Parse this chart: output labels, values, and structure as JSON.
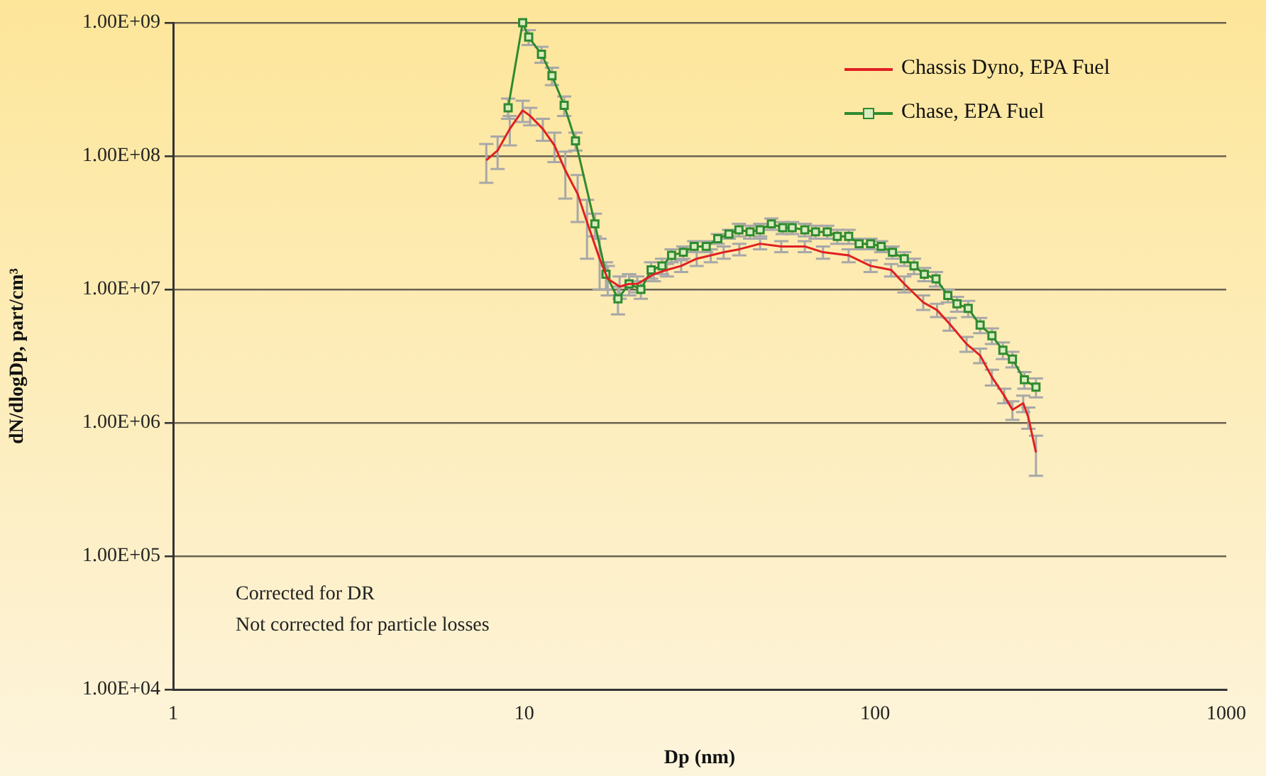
{
  "chart_data": {
    "type": "line",
    "xlabel": "Dp (nm)",
    "ylabel": "dN/dlogDp, part/cm³",
    "log": "xy",
    "grid": "y",
    "legend": "top right",
    "line_style": "solid",
    "xlim": [
      1,
      1000
    ],
    "xticks": [
      1,
      10,
      100,
      1000
    ],
    "ylim": [
      10000,
      1000000000
    ],
    "yticks": [
      {
        "value": 10000,
        "label": "1.00E+04"
      },
      {
        "value": 100000,
        "label": "1.00E+05"
      },
      {
        "value": 1000000,
        "label": "1.00E+06"
      },
      {
        "value": 10000000,
        "label": "1.00E+07"
      },
      {
        "value": 100000000,
        "label": "1.00E+08"
      },
      {
        "value": 1000000000,
        "label": "1.00E+09"
      }
    ],
    "annotations": [
      "Corrected for DR",
      "Not corrected for particle losses"
    ],
    "series": [
      {
        "name": "Chassis Dyno, EPA Fuel",
        "color": "#e02020",
        "x": [
          7.8,
          8.4,
          9.1,
          9.9,
          10.4,
          11.3,
          12.2,
          13.1,
          14.2,
          15.1,
          16.4,
          17.3,
          18.7,
          19.9,
          21,
          23.4,
          25.5,
          28,
          31,
          34,
          37,
          41,
          47,
          54,
          63,
          71,
          84,
          97,
          111,
          121,
          137,
          150,
          163,
          182,
          199,
          215,
          233,
          246,
          264,
          273,
          287
        ],
        "values": [
          93000000,
          110000000,
          160000000,
          220000000,
          200000000,
          160000000,
          120000000,
          78000000,
          52000000,
          32000000,
          17000000,
          12000000,
          10500000,
          11000000,
          11000000,
          13000000,
          14000000,
          15000000,
          17000000,
          18000000,
          19000000,
          20000000,
          22000000,
          21000000,
          21000000,
          19000000,
          18000000,
          15000000,
          14000000,
          11000000,
          8000000,
          7000000,
          5500000,
          3900000,
          3200000,
          2200000,
          1600000,
          1250000,
          1400000,
          1100000,
          600000
        ],
        "errors": [
          30000000,
          30000000,
          40000000,
          40000000,
          30000000,
          30000000,
          30000000,
          30000000,
          20000000,
          15000000,
          7000000,
          3000000,
          2000000,
          2000000,
          1500000,
          1500000,
          1500000,
          1500000,
          2000000,
          2000000,
          2000000,
          2000000,
          2000000,
          2000000,
          2000000,
          2000000,
          2000000,
          1500000,
          1500000,
          1500000,
          1000000,
          800000,
          600000,
          500000,
          400000,
          300000,
          200000,
          200000,
          200000,
          200000,
          200000
        ]
      },
      {
        "name": "Chase, EPA Fuel",
        "color": "#2e8b2e",
        "marker": "square",
        "x": [
          9.0,
          9.9,
          10.3,
          11.2,
          12.0,
          13.0,
          14.0,
          15.9,
          17.1,
          18.5,
          19.9,
          21.5,
          23,
          24.7,
          26.3,
          28.4,
          30.5,
          33,
          35.6,
          38.3,
          40.9,
          44,
          47,
          50.6,
          54.5,
          58,
          63,
          67.6,
          73,
          78,
          84,
          90,
          97,
          104,
          112,
          121,
          129,
          138,
          149,
          161,
          171,
          184,
          199,
          215,
          231,
          246,
          266,
          287
        ],
        "values": [
          230000000,
          1000000000,
          780000000,
          580000000,
          400000000,
          240000000,
          130000000,
          31000000,
          13000000,
          8500000,
          11000000,
          10000000,
          14000000,
          15000000,
          18000000,
          19000000,
          21000000,
          21000000,
          24000000,
          26000000,
          28000000,
          27000000,
          28000000,
          31000000,
          29000000,
          29000000,
          28000000,
          27000000,
          27000000,
          25000000,
          25000000,
          22000000,
          22000000,
          21000000,
          19000000,
          17000000,
          15000000,
          13000000,
          12000000,
          9000000,
          7800000,
          7200000,
          5400000,
          4500000,
          3500000,
          3000000,
          2100000,
          1850000
        ],
        "errors": [
          40000000,
          null,
          100000000,
          80000000,
          60000000,
          40000000,
          20000000,
          6000000,
          3000000,
          2000000,
          2000000,
          1500000,
          2000000,
          2000000,
          2000000,
          2000000,
          2000000,
          2000000,
          2000000,
          2000000,
          3000000,
          3000000,
          3000000,
          3000000,
          3000000,
          3000000,
          3000000,
          3000000,
          3000000,
          3000000,
          3000000,
          2000000,
          2000000,
          2000000,
          2000000,
          2000000,
          2000000,
          1500000,
          1500000,
          1000000,
          1000000,
          1000000,
          700000,
          600000,
          500000,
          400000,
          300000,
          300000
        ]
      }
    ]
  }
}
